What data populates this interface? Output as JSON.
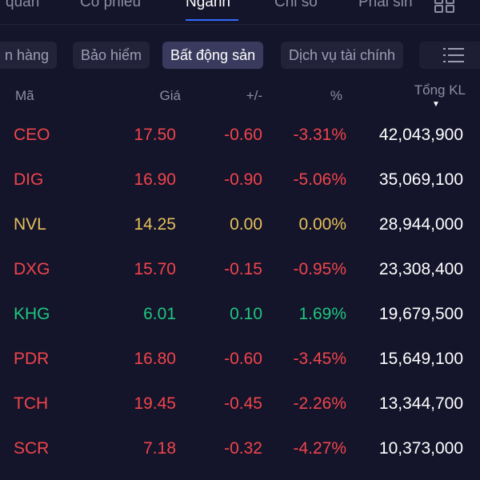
{
  "top_tabs": [
    "quan",
    "Cổ phiếu",
    "Ngành",
    "Chỉ số",
    "Phái sin"
  ],
  "top_tab_active": "Ngành",
  "chips": [
    {
      "label": "n hàng",
      "active": false
    },
    {
      "label": "Bảo hiểm",
      "active": false
    },
    {
      "label": "Bất động sản",
      "active": true
    },
    {
      "label": "Dịch vụ tài chính",
      "active": false
    }
  ],
  "table": {
    "headers": {
      "symbol": "Mã",
      "price": "Giá",
      "change": "+/-",
      "percent": "%",
      "volume": "Tổng KL"
    },
    "sort_column": "volume",
    "sort_direction": "desc",
    "rows": [
      {
        "symbol": "CEO",
        "price": "17.50",
        "change": "-0.60",
        "percent": "-3.31%",
        "volume": "42,043,900",
        "trend": "down"
      },
      {
        "symbol": "DIG",
        "price": "16.90",
        "change": "-0.90",
        "percent": "-5.06%",
        "volume": "35,069,100",
        "trend": "down"
      },
      {
        "symbol": "NVL",
        "price": "14.25",
        "change": "0.00",
        "percent": "0.00%",
        "volume": "28,944,000",
        "trend": "flat"
      },
      {
        "symbol": "DXG",
        "price": "15.70",
        "change": "-0.15",
        "percent": "-0.95%",
        "volume": "23,308,400",
        "trend": "down"
      },
      {
        "symbol": "KHG",
        "price": "6.01",
        "change": "0.10",
        "percent": "1.69%",
        "volume": "19,679,500",
        "trend": "up"
      },
      {
        "symbol": "PDR",
        "price": "16.80",
        "change": "-0.60",
        "percent": "-3.45%",
        "volume": "15,649,100",
        "trend": "down"
      },
      {
        "symbol": "TCH",
        "price": "19.45",
        "change": "-0.45",
        "percent": "-2.26%",
        "volume": "13,344,700",
        "trend": "down"
      },
      {
        "symbol": "SCR",
        "price": "7.18",
        "change": "-0.32",
        "percent": "-4.27%",
        "volume": "10,373,000",
        "trend": "down"
      }
    ]
  },
  "colors": {
    "background": "#14142b",
    "down": "#f0454a",
    "up": "#1fc77e",
    "flat": "#e5c05a",
    "accent": "#2f6bff"
  },
  "icons": {
    "grid": "grid-icon",
    "menu": "list-menu-icon",
    "sort": "sort-desc-icon"
  }
}
